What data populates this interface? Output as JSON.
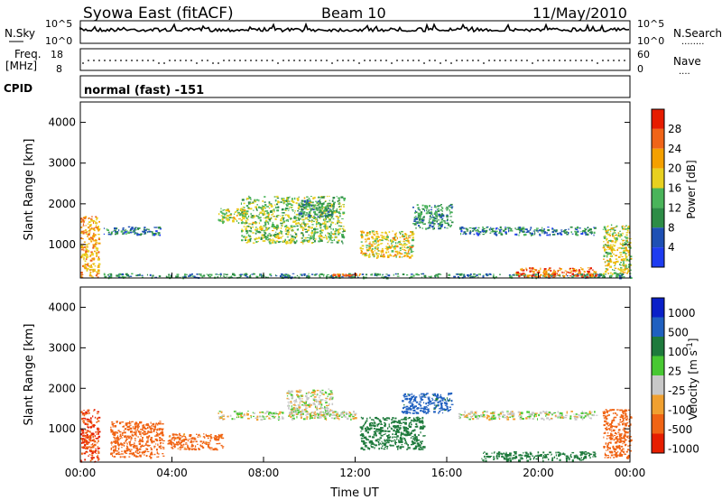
{
  "header": {
    "station": "Syowa East (fitACF)",
    "beam": "Beam 10",
    "date": "11/May/2010"
  },
  "nsky_panel": {
    "left_label": "N.Sky",
    "left_ticks": [
      "10^5",
      "10^0"
    ],
    "right_ticks": [
      "10^5",
      "10^0"
    ],
    "right_label": "N.Search",
    "right_legend_marker": "........"
  },
  "freq_panel": {
    "left_label_line1": "Freq.",
    "left_label_line2": "[MHz]",
    "left_ticks": [
      "18",
      "8"
    ],
    "right_ticks": [
      "60",
      "0"
    ],
    "right_label": "Nave",
    "right_legend_marker": "...."
  },
  "cpid_panel": {
    "label": "CPID",
    "mode_text": "normal (fast) -151"
  },
  "colors": {
    "scale": [
      "#1e3cf0",
      "#1e50b4",
      "#2d8c46",
      "#4ab45a",
      "#e8d020",
      "#f4a000",
      "#f06418",
      "#e61c00"
    ],
    "velocity_scale": [
      "#0a20c8",
      "#2060c0",
      "#1e7a3c",
      "#48c832",
      "#c8c8c8",
      "#f0a030",
      "#f06414",
      "#e61e00"
    ]
  },
  "chart_data": [
    {
      "type": "heatmap",
      "title": "Power",
      "ylabel": "Slant Range [km]",
      "ylim": [
        180,
        4500
      ],
      "y_ticks": [
        1000,
        2000,
        3000,
        4000
      ],
      "x_ticks": [
        "00:00",
        "04:00",
        "08:00",
        "12:00",
        "16:00",
        "20:00",
        "00:00"
      ],
      "xlim_hours": [
        0,
        24
      ],
      "colorbar": {
        "label": "Power [dB]",
        "ticks": [
          "4",
          "8",
          "12",
          "16",
          "20",
          "24",
          "28"
        ],
        "range": [
          0,
          30
        ]
      },
      "features": [
        {
          "t": [
            0.0,
            0.8
          ],
          "r": [
            200,
            1700
          ],
          "level": 20
        },
        {
          "t": [
            1.0,
            24.0
          ],
          "r": [
            200,
            300
          ],
          "level": 10
        },
        {
          "t": [
            1.0,
            3.5
          ],
          "r": [
            1250,
            1450
          ],
          "level": 8
        },
        {
          "t": [
            6.0,
            7.2
          ],
          "r": [
            1550,
            1900
          ],
          "level": 16
        },
        {
          "t": [
            7.0,
            11.5
          ],
          "r": [
            1050,
            2200
          ],
          "level": 14
        },
        {
          "t": [
            9.5,
            11.0
          ],
          "r": [
            1700,
            2100
          ],
          "level": 10
        },
        {
          "t": [
            12.2,
            14.5
          ],
          "r": [
            700,
            1350
          ],
          "level": 18
        },
        {
          "t": [
            11.0,
            12.2
          ],
          "r": [
            250,
            300
          ],
          "level": 24
        },
        {
          "t": [
            14.5,
            16.2
          ],
          "r": [
            1400,
            2000
          ],
          "level": 10
        },
        {
          "t": [
            16.5,
            22.5
          ],
          "r": [
            1250,
            1450
          ],
          "level": 8
        },
        {
          "t": [
            19.0,
            22.5
          ],
          "r": [
            220,
            450
          ],
          "level": 24
        },
        {
          "t": [
            22.8,
            24.0
          ],
          "r": [
            300,
            1500
          ],
          "level": 16
        }
      ]
    },
    {
      "type": "heatmap",
      "title": "Velocity",
      "ylabel": "Slant Range [km]",
      "ylim": [
        180,
        4500
      ],
      "y_ticks": [
        1000,
        2000,
        3000,
        4000
      ],
      "x_ticks": [
        "00:00",
        "04:00",
        "08:00",
        "12:00",
        "16:00",
        "20:00",
        "00:00"
      ],
      "xlim_hours": [
        0,
        24
      ],
      "xlabel": "Time UT",
      "colorbar": {
        "label": "Velocity [m s^-1]",
        "ticks": [
          "1000",
          "500",
          "100",
          "25",
          "-25",
          "-100",
          "-500",
          "-1000"
        ]
      },
      "features": [
        {
          "t": [
            0.0,
            0.8
          ],
          "r": [
            200,
            1500
          ],
          "level": -500
        },
        {
          "t": [
            1.3,
            3.6
          ],
          "r": [
            300,
            1200
          ],
          "level": -300
        },
        {
          "t": [
            3.8,
            6.2
          ],
          "r": [
            500,
            900
          ],
          "level": -150
        },
        {
          "t": [
            6.0,
            12.0
          ],
          "r": [
            1250,
            1450
          ],
          "level": 0
        },
        {
          "t": [
            9.0,
            11.0
          ],
          "r": [
            1350,
            2000
          ],
          "level": 0
        },
        {
          "t": [
            12.2,
            15.0
          ],
          "r": [
            500,
            1300
          ],
          "level": 150
        },
        {
          "t": [
            14.0,
            16.2
          ],
          "r": [
            1400,
            1900
          ],
          "level": 300
        },
        {
          "t": [
            16.5,
            22.5
          ],
          "r": [
            1250,
            1450
          ],
          "level": 0
        },
        {
          "t": [
            17.5,
            22.5
          ],
          "r": [
            230,
            450
          ],
          "level": 150
        },
        {
          "t": [
            22.8,
            24.0
          ],
          "r": [
            300,
            1500
          ],
          "level": -300
        }
      ]
    }
  ]
}
